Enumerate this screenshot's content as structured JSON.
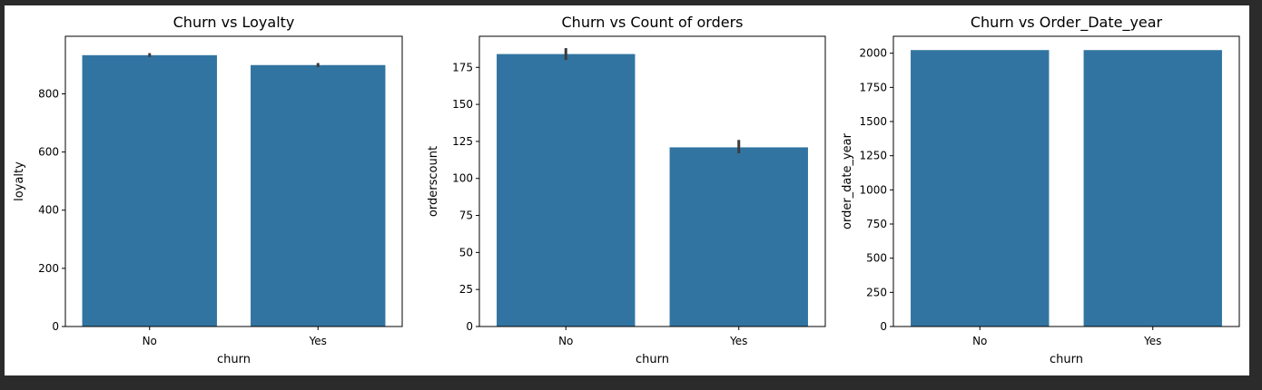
{
  "colors": {
    "bar": "#3274a1",
    "errbar": "#3c3c3c",
    "background": "#2b2b2b"
  },
  "chart_data": [
    {
      "type": "bar",
      "title": "Churn vs Loyalty",
      "xlabel": "churn",
      "ylabel": "loyalty",
      "categories": [
        "No",
        "Yes"
      ],
      "values": [
        933,
        899
      ],
      "error_low": [
        927,
        892
      ],
      "error_high": [
        940,
        906
      ],
      "ylim": [
        0,
        998
      ],
      "yticks": [
        0,
        200,
        400,
        600,
        800
      ]
    },
    {
      "type": "bar",
      "title": "Churn vs Count of orders",
      "xlabel": "churn",
      "ylabel": "orderscount",
      "categories": [
        "No",
        "Yes"
      ],
      "values": [
        184,
        121
      ],
      "error_low": [
        180,
        117
      ],
      "error_high": [
        188,
        126
      ],
      "ylim": [
        0,
        196
      ],
      "yticks": [
        0,
        25,
        50,
        75,
        100,
        125,
        150,
        175
      ]
    },
    {
      "type": "bar",
      "title": "Churn vs Order_Date_year",
      "xlabel": "churn",
      "ylabel": "order_date_year",
      "categories": [
        "No",
        "Yes"
      ],
      "values": [
        2023,
        2023
      ],
      "ylim": [
        0,
        2124
      ],
      "yticks": [
        0,
        250,
        500,
        750,
        1000,
        1250,
        1500,
        1750,
        2000
      ]
    }
  ]
}
